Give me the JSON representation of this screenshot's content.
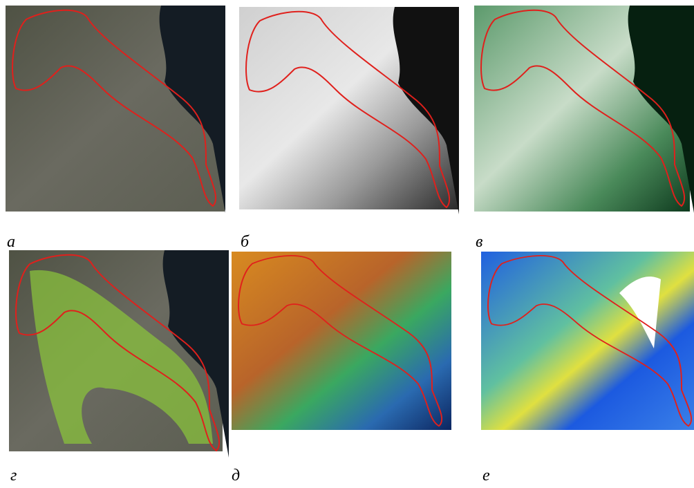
{
  "panels": [
    {
      "label": "а"
    },
    {
      "label": "б"
    },
    {
      "label": "в"
    },
    {
      "label": "г"
    },
    {
      "label": "д"
    },
    {
      "label": "е"
    }
  ]
}
